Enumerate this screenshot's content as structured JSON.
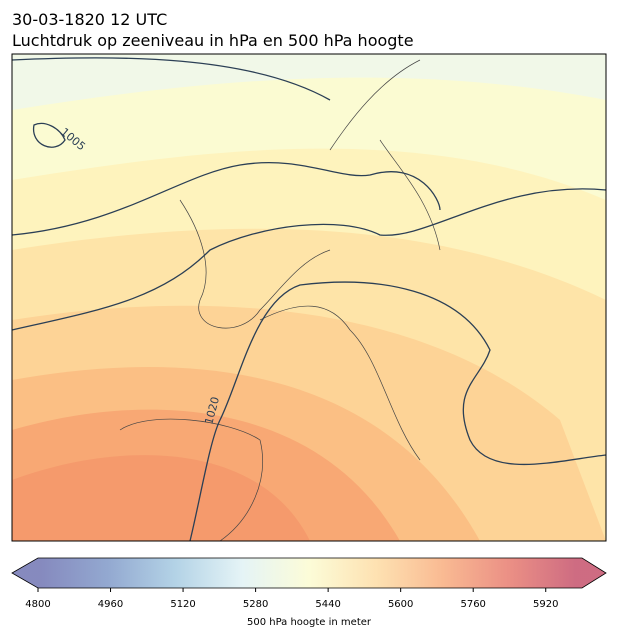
{
  "header": {
    "title": "30-03-1820 12 UTC",
    "subtitle": "Luchtdruk op zeeniveau in hPa en 500 hPa hoogte"
  },
  "map": {
    "contour_labels": [
      "1005",
      "1020"
    ]
  },
  "colorbar": {
    "range": [
      4800,
      6000
    ],
    "ticks": [
      4800,
      4960,
      5120,
      5280,
      5440,
      5600,
      5760,
      5920
    ],
    "label": "500 hPa hoogte in meter",
    "colors": [
      "#5d63a9",
      "#6f8cc1",
      "#9ac4de",
      "#dcf0f3",
      "#fbfbcb",
      "#fdd898",
      "#f7a36e",
      "#e46a5c",
      "#bd3a58"
    ]
  }
}
